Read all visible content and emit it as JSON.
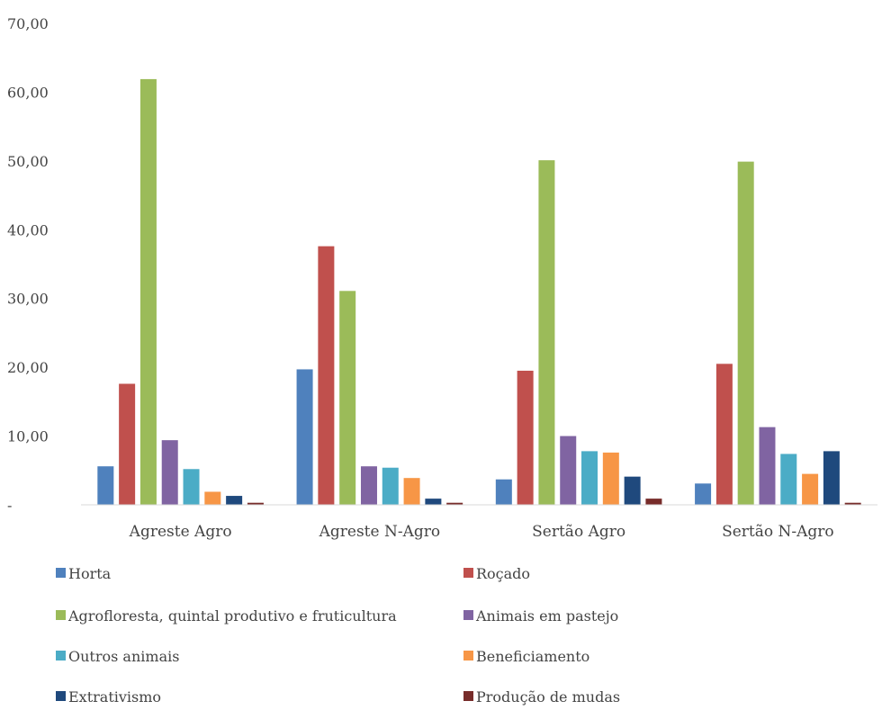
{
  "chart_data": {
    "type": "bar",
    "title": "",
    "xlabel": "",
    "ylabel": "",
    "ylim": [
      0,
      70
    ],
    "yticks": [
      {
        "value": 0,
        "label": "-"
      },
      {
        "value": 10,
        "label": "10,00"
      },
      {
        "value": 20,
        "label": "20,00"
      },
      {
        "value": 30,
        "label": "30,00"
      },
      {
        "value": 40,
        "label": "40,00"
      },
      {
        "value": 50,
        "label": "50,00"
      },
      {
        "value": 60,
        "label": "60,00"
      },
      {
        "value": 70,
        "label": "70,00"
      }
    ],
    "grid": false,
    "legend_position": "bottom",
    "categories": [
      "Agreste Agro",
      "Agreste N-Agro",
      "Sertão Agro",
      "Sertão N-Agro"
    ],
    "series": [
      {
        "name": "Horta",
        "color": "#4F81BD",
        "values": [
          5.6,
          19.7,
          3.7,
          3.1
        ]
      },
      {
        "name": "Roçado",
        "color": "#C0504D",
        "values": [
          17.6,
          37.6,
          19.5,
          20.5
        ]
      },
      {
        "name": "Agrofloresta, quintal produtivo e fruticultura",
        "color": "#9BBB59",
        "values": [
          61.9,
          31.1,
          50.1,
          49.9
        ]
      },
      {
        "name": "Animais em pastejo",
        "color": "#8064A2",
        "values": [
          9.4,
          5.6,
          10.0,
          11.3
        ]
      },
      {
        "name": "Outros animais",
        "color": "#4BACC6",
        "values": [
          5.2,
          5.4,
          7.8,
          7.4
        ]
      },
      {
        "name": "Beneficiamento",
        "color": "#F79646",
        "values": [
          1.9,
          3.9,
          7.6,
          4.5
        ]
      },
      {
        "name": "Extrativismo",
        "color": "#1F497D",
        "values": [
          1.3,
          0.9,
          4.1,
          7.8
        ]
      },
      {
        "name": "Produção de mudas",
        "color": "#772C2A",
        "values": [
          0.3,
          0.3,
          0.9,
          0.3
        ]
      }
    ]
  }
}
